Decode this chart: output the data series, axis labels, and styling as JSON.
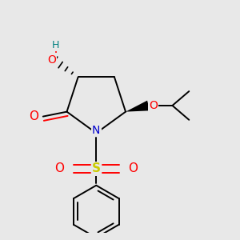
{
  "bg_color": "#e8e8e8",
  "atom_colors": {
    "C": "#000000",
    "N": "#0000cc",
    "O": "#ff0000",
    "S": "#cccc00",
    "H": "#008080"
  },
  "bond_color": "#000000",
  "bond_width": 1.4,
  "figsize": [
    3.0,
    3.0
  ],
  "dpi": 100
}
